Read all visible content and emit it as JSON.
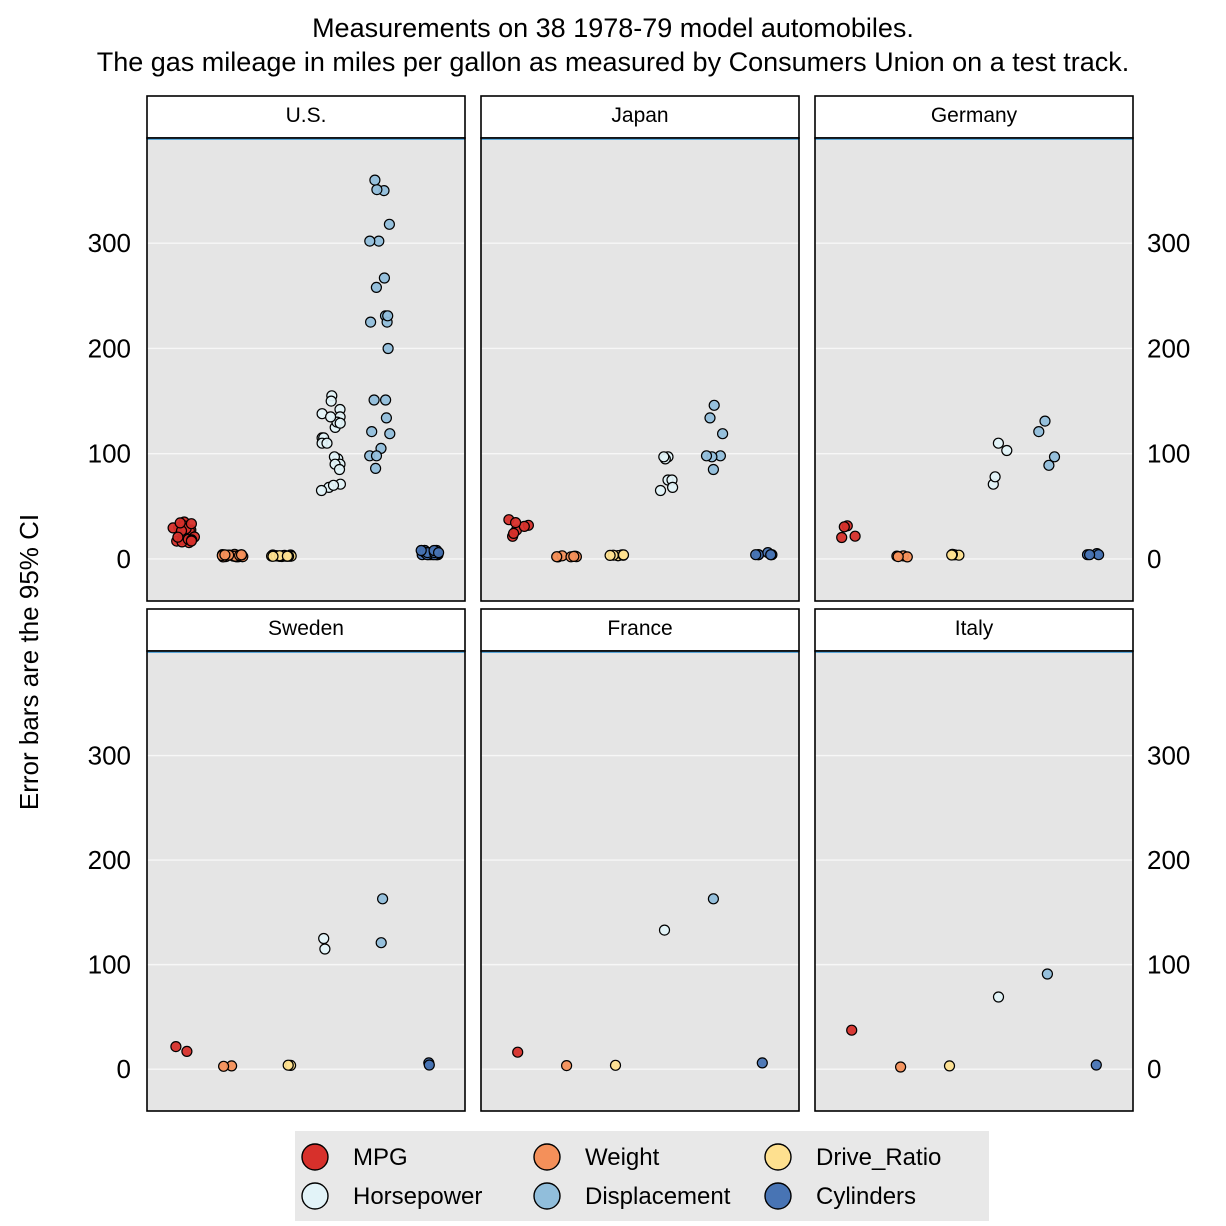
{
  "chart_data": {
    "type": "scatter",
    "title": "Measurements on 38 1978-79 model automobiles.",
    "subtitle": "The gas mileage in miles per gallon as measured by Consumers Union on a test track.",
    "ylabel": "Error bars are the 95% CI",
    "xlabel": "",
    "ylim": [
      -40,
      400
    ],
    "yticks": [
      0,
      100,
      200,
      300
    ],
    "grid": true,
    "legend_position": "bottom",
    "variables": [
      "MPG",
      "Weight",
      "Drive_Ratio",
      "Horsepower",
      "Displacement",
      "Cylinders"
    ],
    "legend_order": [
      "MPG",
      "Weight",
      "Drive_Ratio",
      "Horsepower",
      "Displacement",
      "Cylinders"
    ],
    "colors": {
      "MPG": "#d7302b",
      "Weight": "#f4905a",
      "Drive_Ratio": "#fee08f",
      "Horsepower": "#e2f3f8",
      "Displacement": "#91bedb",
      "Cylinders": "#4874b4"
    },
    "panels": [
      {
        "name": "U.S.",
        "values": {
          "MPG": [
            16.9,
            15.5,
            19.2,
            18.5,
            30.0,
            27.5,
            27.2,
            34.1,
            35.1,
            31.5,
            29.5,
            28.4,
            28.8,
            26.8,
            33.5,
            34.2,
            16.2,
            20.6,
            20.8,
            18.6,
            18.1,
            17.0
          ],
          "Weight": [
            4.36,
            4.05,
            3.6,
            3.94,
            2.16,
            2.56,
            2.3,
            1.98,
            1.9,
            2.0,
            2.14,
            2.67,
            2.6,
            2.7,
            2.56,
            2.2,
            3.83,
            3.14,
            3.38,
            3.91,
            3.62,
            3.84
          ],
          "Drive_Ratio": [
            2.73,
            2.26,
            2.56,
            2.45,
            3.7,
            3.05,
            3.54,
            3.37,
            3.7,
            3.1,
            3.1,
            2.73,
            2.69,
            2.84,
            2.69,
            3.08,
            2.41,
            3.08,
            2.71,
            2.45,
            2.45,
            2.64
          ],
          "Horsepower": [
            155,
            142,
            125,
            150,
            68,
            95,
            97,
            65,
            71,
            90,
            70,
            115,
            115,
            110,
            90,
            85,
            135,
            110,
            130,
            129,
            138,
            135
          ],
          "Displacement": [
            350,
            351,
            267,
            360,
            98,
            134,
            119,
            105,
            86,
            151,
            98,
            231,
            225,
            200,
            151,
            121,
            318,
            225,
            231,
            302,
            302,
            258
          ],
          "Cylinders": [
            8,
            8,
            8,
            8,
            4,
            4,
            4,
            4,
            4,
            4,
            4,
            6,
            6,
            6,
            4,
            4,
            8,
            6,
            6,
            8,
            8,
            6
          ]
        }
      },
      {
        "name": "Japan",
        "values": {
          "MPG": [
            21.5,
            31.9,
            37.3,
            27.4,
            30.9,
            34.5,
            24.2
          ],
          "Weight": [
            2.59,
            1.92,
            2.13,
            2.91,
            2.1,
            2.0,
            2.39
          ],
          "Drive_Ratio": [
            3.08,
            3.85,
            3.05,
            3.54,
            3.31,
            3.47,
            3.78
          ],
          "Horsepower": [
            97,
            65,
            95,
            75,
            75,
            68,
            97
          ],
          "Displacement": [
            134,
            85,
            98,
            146,
            97,
            98,
            119
          ],
          "Cylinders": [
            4,
            4,
            4,
            6,
            4,
            4,
            4
          ]
        }
      },
      {
        "name": "Germany",
        "values": {
          "MPG": [
            20.3,
            21.6,
            31.5,
            30.5
          ],
          "Weight": [
            2.83,
            2.69,
            1.93,
            2.19
          ],
          "Drive_Ratio": [
            3.9,
            3.54,
            4.3,
            3.7
          ],
          "Horsepower": [
            103,
            110,
            71,
            78
          ],
          "Displacement": [
            131,
            121,
            89,
            97
          ],
          "Cylinders": [
            5,
            4,
            4,
            4
          ]
        }
      },
      {
        "name": "Sweden",
        "values": {
          "MPG": [
            17.0,
            21.6
          ],
          "Weight": [
            3.14,
            2.8
          ],
          "Drive_Ratio": [
            3.58,
            3.78
          ],
          "Horsepower": [
            125,
            115
          ],
          "Displacement": [
            163,
            121
          ],
          "Cylinders": [
            6,
            4
          ]
        }
      },
      {
        "name": "France",
        "values": {
          "MPG": [
            16.2
          ],
          "Weight": [
            3.41
          ],
          "Drive_Ratio": [
            3.7
          ],
          "Horsepower": [
            133
          ],
          "Displacement": [
            163
          ],
          "Cylinders": [
            6
          ]
        }
      },
      {
        "name": "Italy",
        "values": {
          "MPG": [
            37.3
          ],
          "Weight": [
            2.13
          ],
          "Drive_Ratio": [
            3.1
          ],
          "Horsepower": [
            69
          ],
          "Displacement": [
            91
          ],
          "Cylinders": [
            4
          ]
        }
      }
    ]
  }
}
